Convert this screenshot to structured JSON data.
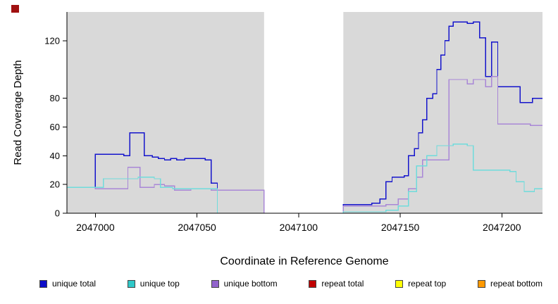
{
  "marker": {
    "color": "#a01010"
  },
  "chart_data": {
    "type": "line",
    "line_style": "step",
    "title": "",
    "xlabel": "Coordinate in Reference Genome",
    "ylabel": "Read Coverage Depth",
    "xlim": [
      2046986,
      2047220
    ],
    "ylim": [
      0,
      140
    ],
    "x_ticks": [
      2047000,
      2047050,
      2047100,
      2047150,
      2047200
    ],
    "y_ticks": [
      0,
      20,
      40,
      60,
      80,
      120
    ],
    "grid": false,
    "plot_bg": "#d9d9d9",
    "masked_region": {
      "start": 2047083,
      "end": 2047122,
      "color": "#ffffff"
    },
    "series": [
      {
        "name": "unique total",
        "color": "#1414cc",
        "points": [
          [
            2046986,
            18
          ],
          [
            2047000,
            41
          ],
          [
            2047014,
            40
          ],
          [
            2047017,
            56
          ],
          [
            2047024,
            40
          ],
          [
            2047028,
            39
          ],
          [
            2047031,
            38
          ],
          [
            2047034,
            37
          ],
          [
            2047037,
            38
          ],
          [
            2047040,
            37
          ],
          [
            2047044,
            38
          ],
          [
            2047051,
            38
          ],
          [
            2047054,
            37
          ],
          [
            2047057,
            21
          ],
          [
            2047060,
            16
          ],
          [
            2047083,
            0
          ],
          [
            2047122,
            6
          ],
          [
            2047136,
            7
          ],
          [
            2047140,
            10
          ],
          [
            2047143,
            22
          ],
          [
            2047146,
            25
          ],
          [
            2047152,
            26
          ],
          [
            2047154,
            40
          ],
          [
            2047157,
            45
          ],
          [
            2047159,
            56
          ],
          [
            2047161,
            65
          ],
          [
            2047163,
            80
          ],
          [
            2047166,
            83
          ],
          [
            2047168,
            100
          ],
          [
            2047170,
            110
          ],
          [
            2047172,
            120
          ],
          [
            2047174,
            130
          ],
          [
            2047176,
            133
          ],
          [
            2047183,
            132
          ],
          [
            2047186,
            133
          ],
          [
            2047189,
            122
          ],
          [
            2047192,
            95
          ],
          [
            2047195,
            119
          ],
          [
            2047198,
            88
          ],
          [
            2047209,
            77
          ],
          [
            2047215,
            80
          ]
        ]
      },
      {
        "name": "unique bottom",
        "color": "#a987d6",
        "points": [
          [
            2046986,
            18
          ],
          [
            2047000,
            17
          ],
          [
            2047016,
            32
          ],
          [
            2047022,
            18
          ],
          [
            2047029,
            20
          ],
          [
            2047034,
            19
          ],
          [
            2047039,
            16
          ],
          [
            2047047,
            17
          ],
          [
            2047057,
            16
          ],
          [
            2047083,
            0
          ],
          [
            2047122,
            5
          ],
          [
            2047143,
            6
          ],
          [
            2047149,
            10
          ],
          [
            2047154,
            17
          ],
          [
            2047158,
            25
          ],
          [
            2047161,
            37
          ],
          [
            2047171,
            37
          ],
          [
            2047174,
            93
          ],
          [
            2047183,
            90
          ],
          [
            2047186,
            93
          ],
          [
            2047192,
            88
          ],
          [
            2047195,
            95
          ],
          [
            2047198,
            62
          ],
          [
            2047214,
            61
          ]
        ]
      },
      {
        "name": "unique top",
        "color": "#6fdcdc",
        "points": [
          [
            2046986,
            18
          ],
          [
            2047004,
            24
          ],
          [
            2047021,
            25
          ],
          [
            2047029,
            24
          ],
          [
            2047032,
            18
          ],
          [
            2047038,
            17
          ],
          [
            2047060,
            0
          ],
          [
            2047122,
            1
          ],
          [
            2047143,
            2
          ],
          [
            2047149,
            5
          ],
          [
            2047154,
            15
          ],
          [
            2047158,
            33
          ],
          [
            2047163,
            40
          ],
          [
            2047168,
            47
          ],
          [
            2047176,
            48
          ],
          [
            2047183,
            47
          ],
          [
            2047186,
            30
          ],
          [
            2047204,
            29
          ],
          [
            2047207,
            22
          ],
          [
            2047211,
            15
          ],
          [
            2047216,
            17
          ]
        ]
      },
      {
        "name": "repeat total",
        "color": "#c00000",
        "points": [
          [
            2046986,
            0
          ]
        ]
      },
      {
        "name": "repeat top",
        "color": "#ffff00",
        "points": [
          [
            2046986,
            0
          ]
        ]
      },
      {
        "name": "repeat bottom",
        "color": "#ff9900",
        "points": [
          [
            2046986,
            0
          ]
        ]
      }
    ],
    "legend": [
      {
        "label": "unique total",
        "color": "#0d0dc8"
      },
      {
        "label": "unique top",
        "color": "#2fc8c8"
      },
      {
        "label": "unique bottom",
        "color": "#9163cc"
      },
      {
        "label": "repeat total",
        "color": "#c00000"
      },
      {
        "label": "repeat top",
        "color": "#ffff00"
      },
      {
        "label": "repeat bottom",
        "color": "#ff9900"
      }
    ],
    "legend_position": "bottom"
  }
}
